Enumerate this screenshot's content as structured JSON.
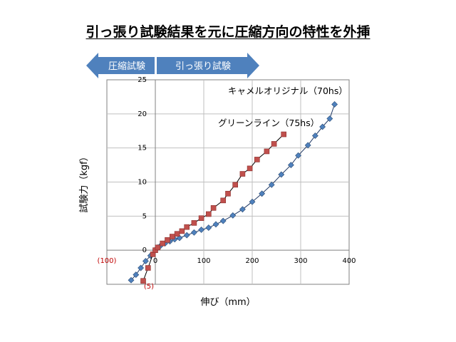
{
  "title": "引っ張り試験結果を元に圧縮方向の特性を外挿",
  "arrows": {
    "compression_label": "圧縮試験",
    "tension_label": "引っ張り試験",
    "color": "#4f81bd"
  },
  "chart_data": {
    "type": "line",
    "xlabel": "伸び（mm）",
    "ylabel": "試験力（kgf）",
    "xlim": [
      -100,
      400
    ],
    "ylim": [
      -5,
      25
    ],
    "x_ticks": [
      {
        "value": -100,
        "label": "(100)"
      },
      {
        "value": 0,
        "label": "0"
      },
      {
        "value": 100,
        "label": "100"
      },
      {
        "value": 200,
        "label": "200"
      },
      {
        "value": 300,
        "label": "300"
      },
      {
        "value": 400,
        "label": "400"
      }
    ],
    "y_ticks": [
      {
        "value": -5,
        "label": "(5)"
      },
      {
        "value": 0,
        "label": "0"
      },
      {
        "value": 5,
        "label": "5"
      },
      {
        "value": 10,
        "label": "10"
      },
      {
        "value": 15,
        "label": "15"
      },
      {
        "value": 20,
        "label": "20"
      },
      {
        "value": 25,
        "label": "25"
      }
    ],
    "grid": true,
    "series": [
      {
        "name": "キャメルオリジナル（70hs）",
        "color": "#4f81bd",
        "marker": "diamond",
        "points": [
          [
            -50,
            -4.4
          ],
          [
            -40,
            -3.6
          ],
          [
            -30,
            -2.6
          ],
          [
            -20,
            -1.6
          ],
          [
            -10,
            -0.8
          ],
          [
            0,
            0
          ],
          [
            5,
            0.4
          ],
          [
            10,
            0.6
          ],
          [
            20,
            1.0
          ],
          [
            30,
            1.3
          ],
          [
            40,
            1.6
          ],
          [
            50,
            1.8
          ],
          [
            65,
            2.2
          ],
          [
            80,
            2.6
          ],
          [
            95,
            3.0
          ],
          [
            110,
            3.3
          ],
          [
            125,
            3.8
          ],
          [
            140,
            4.3
          ],
          [
            160,
            5.1
          ],
          [
            180,
            6.0
          ],
          [
            200,
            7.1
          ],
          [
            220,
            8.3
          ],
          [
            240,
            9.6
          ],
          [
            260,
            11.1
          ],
          [
            280,
            12.5
          ],
          [
            295,
            13.9
          ],
          [
            315,
            15.4
          ],
          [
            330,
            16.8
          ],
          [
            345,
            18.1
          ],
          [
            360,
            19.3
          ],
          [
            370,
            21.4
          ]
        ]
      },
      {
        "name": "グリーンライン（75hs）",
        "color": "#c0504d",
        "marker": "square",
        "points": [
          [
            -25,
            -4.5
          ],
          [
            -15,
            -2.6
          ],
          [
            -5,
            -0.6
          ],
          [
            0,
            0
          ],
          [
            5,
            0.4
          ],
          [
            15,
            1.0
          ],
          [
            25,
            1.5
          ],
          [
            35,
            2.0
          ],
          [
            45,
            2.4
          ],
          [
            55,
            2.8
          ],
          [
            65,
            3.4
          ],
          [
            80,
            4.0
          ],
          [
            95,
            4.7
          ],
          [
            110,
            5.3
          ],
          [
            120,
            6.2
          ],
          [
            140,
            7.3
          ],
          [
            150,
            8.3
          ],
          [
            165,
            9.6
          ],
          [
            180,
            11.2
          ],
          [
            195,
            12.0
          ],
          [
            210,
            13.3
          ],
          [
            230,
            14.5
          ],
          [
            245,
            15.6
          ],
          [
            265,
            17.0
          ]
        ]
      }
    ],
    "annotations": [
      {
        "text": "キャメルオリジナル（70hs）",
        "series": 0
      },
      {
        "text": "グリーンライン（75hs）",
        "series": 1
      }
    ]
  }
}
